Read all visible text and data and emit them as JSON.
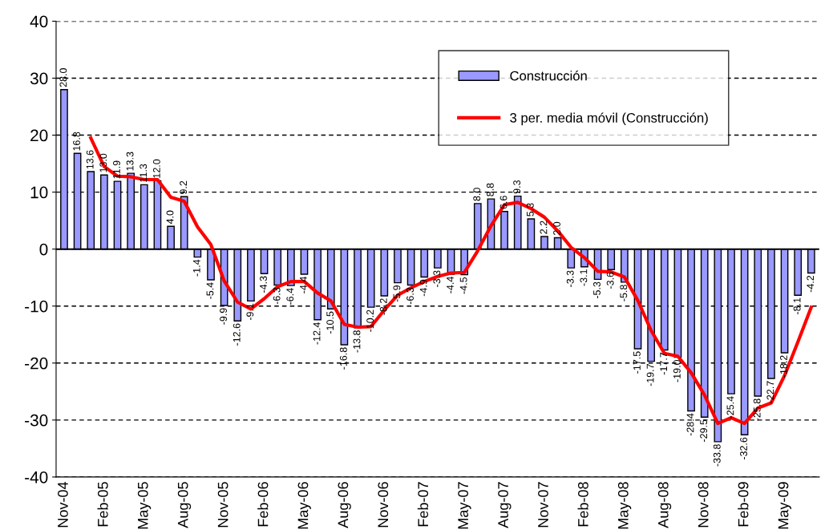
{
  "chart_data": {
    "type": "bar",
    "categories": [
      "Nov-04",
      null,
      null,
      "Feb-05",
      null,
      null,
      "May-05",
      null,
      null,
      "Aug-05",
      null,
      null,
      "Nov-05",
      null,
      null,
      "Feb-06",
      null,
      null,
      "May-06",
      null,
      null,
      "Aug-06",
      null,
      null,
      "Nov-06",
      null,
      null,
      "Feb-07",
      null,
      null,
      "May-07",
      null,
      null,
      "Aug-07",
      null,
      null,
      "Nov-07",
      null,
      null,
      "Feb-08",
      null,
      null,
      "May-08",
      null,
      null,
      "Aug-08",
      null,
      null,
      "Nov-08",
      null,
      null,
      "Feb-09",
      null,
      null,
      "May-09",
      null,
      null
    ],
    "series": [
      {
        "name": "Construcción",
        "color": "#9999ff",
        "values": [
          28.0,
          16.8,
          13.6,
          13.0,
          11.9,
          13.3,
          11.3,
          12.0,
          4.0,
          9.2,
          -1.4,
          -5.4,
          -9.9,
          -12.6,
          -9.1,
          -4.3,
          -6.3,
          -6.4,
          -4.4,
          -12.4,
          -10.5,
          -16.8,
          -13.8,
          -10.2,
          -8.2,
          -5.9,
          -6.3,
          -4.9,
          -3.3,
          -4.4,
          -4.5,
          8.0,
          8.8,
          6.6,
          9.3,
          5.3,
          2.2,
          2.0,
          -3.3,
          -3.1,
          -5.3,
          -3.6,
          -5.8,
          -17.5,
          -19.7,
          -17.7,
          -19.0,
          -28.4,
          -29.5,
          -33.8,
          -25.4,
          -32.6,
          -25.8,
          -22.7,
          -18.2,
          -8.1,
          -4.2
        ],
        "value_labels": [
          "28.0",
          "16.8",
          "13.6",
          "13.0",
          "11.9",
          "13.3",
          "11.3",
          "12.0",
          "4.0",
          "9.2",
          "-1.4",
          "-5.4",
          "-9.9",
          "-12.6",
          "-9.1",
          "-4.3",
          "-6.3",
          "-6.4",
          "-4.4",
          "-12.4",
          "-10.5",
          "-16.8",
          "-13.8",
          "-10.2",
          "-8.2",
          "-5.9",
          "-6.3",
          "-4.9",
          "-3.3",
          "-4.4",
          "-4.5",
          "8.0",
          "8.8",
          "6.6",
          "9.3",
          "5.3",
          "2.2",
          "2.0",
          "-3.3",
          "-3.1",
          "-5.3",
          "-3.6",
          "-5.8",
          "-17.5",
          "-19.7",
          "-17.7",
          "-19.0",
          "-28.4",
          "-29.5",
          "-33.8",
          "-25.4",
          "-32.6",
          "-25.8",
          "-22.7",
          "-18.2",
          "-8.1",
          "-4.2"
        ]
      },
      {
        "name": "3 per. media móvil (Construcción)",
        "type": "line",
        "color": "#ff0000",
        "values": [
          null,
          null,
          19.5,
          14.5,
          12.8,
          12.7,
          12.2,
          12.2,
          9.1,
          8.4,
          3.9,
          0.8,
          -5.6,
          -9.3,
          -10.5,
          -8.7,
          -6.6,
          -5.7,
          -5.7,
          -7.7,
          -9.1,
          -13.2,
          -13.7,
          -13.6,
          -10.7,
          -8.1,
          -6.8,
          -5.7,
          -4.8,
          -4.2,
          -4.1,
          -0.3,
          4.1,
          7.8,
          8.2,
          7.1,
          5.6,
          3.2,
          0.3,
          -1.5,
          -3.9,
          -4.0,
          -4.9,
          -9.0,
          -14.3,
          -18.3,
          -18.8,
          -21.7,
          -25.6,
          -30.6,
          -29.6,
          -30.6,
          -27.9,
          -27.0,
          -22.2,
          -16.3,
          -10.2
        ]
      }
    ],
    "ylim": [
      -40,
      40
    ],
    "yticks": [
      -40,
      -30,
      -20,
      -10,
      0,
      10,
      20,
      30,
      40
    ],
    "grid": "y",
    "legend": "top right",
    "line_style": "solid",
    "marker": "none"
  }
}
